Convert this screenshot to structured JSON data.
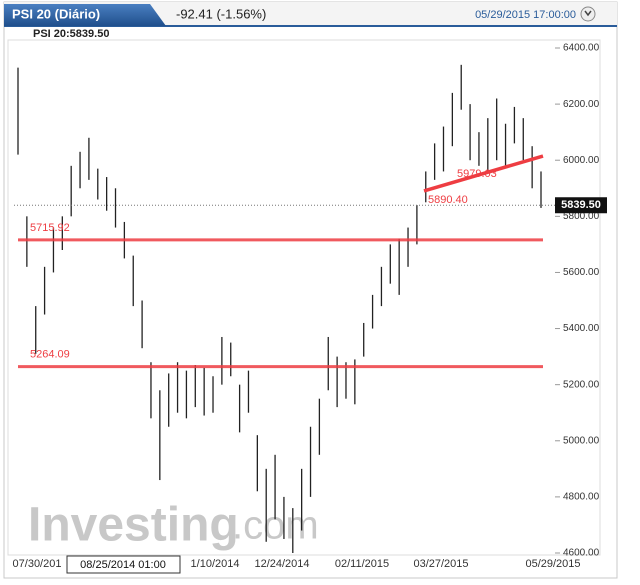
{
  "chart_data": {
    "type": "ohlc",
    "title": "PSI 20 (Diário)",
    "change": "-92.41 (-1.56%)",
    "datetime": "05/29/2015 17:00:00",
    "subtitle": "PSI 20:5839.50",
    "watermark": [
      "Investing",
      ".com"
    ],
    "xlabels": [
      "07/30/201",
      "1/10/2014",
      "12/24/2014",
      "02/11/2015",
      "03/27/2015",
      "05/29/2015"
    ],
    "cursor_label": "08/25/2014 01:00",
    "high": [
      6330,
      5800,
      5480,
      5620,
      5760,
      5800,
      5980,
      6030,
      6080,
      5970,
      5940,
      5900,
      5780,
      5660,
      5500,
      5280,
      5180,
      5240,
      5280,
      5250,
      5270,
      5260,
      5230,
      5370,
      5350,
      5200,
      5250,
      5020,
      4900,
      4950,
      4800,
      4760,
      4900,
      5050,
      5150,
      5370,
      5300,
      5280,
      5290,
      5420,
      5520,
      5620,
      5700,
      5720,
      5760,
      5840,
      5960,
      6060,
      6120,
      6240,
      6340,
      6200,
      6100,
      6150,
      6220,
      6130,
      6190,
      6150,
      6050,
      5960
    ],
    "low": [
      6020,
      5620,
      5310,
      5450,
      5600,
      5680,
      5800,
      5900,
      5930,
      5860,
      5820,
      5760,
      5650,
      5480,
      5330,
      5080,
      4860,
      5050,
      5100,
      5080,
      5120,
      5090,
      5100,
      5200,
      5230,
      5030,
      5100,
      4820,
      4640,
      4720,
      4650,
      4600,
      4680,
      4800,
      4950,
      5180,
      5120,
      5150,
      5130,
      5300,
      5400,
      5480,
      5560,
      5520,
      5620,
      5700,
      5850,
      5930,
      5960,
      6050,
      6180,
      6000,
      5980,
      5960,
      6000,
      5980,
      6060,
      6000,
      5900,
      5830
    ],
    "color": "#222222",
    "levels": [
      5715.92,
      5264.09
    ],
    "level_color": "#ee3d42",
    "trendline": [
      {
        "value": 5890.4,
        "label": "5890.40"
      },
      6015
    ],
    "trendline_label": 5979.03,
    "last": {
      "value": 5839.5,
      "label": "5839.50"
    },
    "ylim": [
      4600,
      6400
    ],
    "yticks": [
      {
        "value": 4600,
        "label": "4600.00"
      },
      {
        "value": 4800,
        "label": "4800.00"
      },
      {
        "value": 5000,
        "label": "5000.00"
      },
      {
        "value": 5200,
        "label": "5200.00"
      },
      {
        "value": 5400,
        "label": "5400.00"
      },
      {
        "value": 5600,
        "label": "5600.00"
      },
      {
        "value": 5800,
        "label": "5800.00"
      },
      {
        "value": 6000,
        "label": "6000.00"
      },
      {
        "value": 6200,
        "label": "6200.00"
      },
      {
        "value": 6400,
        "label": "6400.00"
      }
    ]
  }
}
